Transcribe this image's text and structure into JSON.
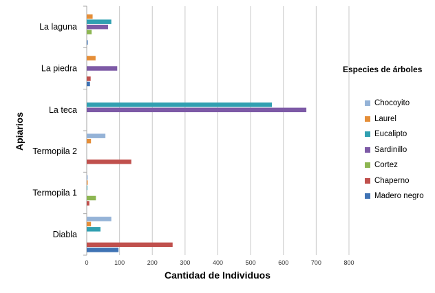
{
  "chart_data": {
    "type": "bar",
    "orientation": "horizontal",
    "title": "",
    "xlabel": "Cantidad de Individuos",
    "ylabel": "Apiarios",
    "xlim": [
      0,
      800
    ],
    "xticks": [
      0,
      100,
      200,
      300,
      400,
      500,
      600,
      700,
      800
    ],
    "grid": "vertical",
    "categories": [
      "La laguna",
      "La piedra",
      "La teca",
      "Termopila 2",
      "Termopila 1",
      "Diabla"
    ],
    "legend_title": "Especies de árboles",
    "legend_position": "right",
    "series": [
      {
        "name": "Chocoyito",
        "color": "#95b3d7",
        "values": [
          0,
          0,
          0,
          57,
          3,
          75
        ]
      },
      {
        "name": "Laurel",
        "color": "#e58e38",
        "values": [
          18,
          27,
          0,
          13,
          3,
          13
        ]
      },
      {
        "name": "Eucalipto",
        "color": "#31a0b1",
        "values": [
          75,
          0,
          565,
          0,
          2,
          42
        ]
      },
      {
        "name": "Sardinillo",
        "color": "#7d5aa6",
        "values": [
          65,
          93,
          670,
          0,
          0,
          0
        ]
      },
      {
        "name": "Cortez",
        "color": "#8db652",
        "values": [
          15,
          0,
          0,
          0,
          28,
          0
        ]
      },
      {
        "name": "Chaperno",
        "color": "#c0504d",
        "values": [
          0,
          12,
          0,
          136,
          8,
          262
        ]
      },
      {
        "name": "Madero negro",
        "color": "#3f73b4",
        "values": [
          3,
          10,
          0,
          0,
          0,
          97
        ]
      }
    ]
  }
}
